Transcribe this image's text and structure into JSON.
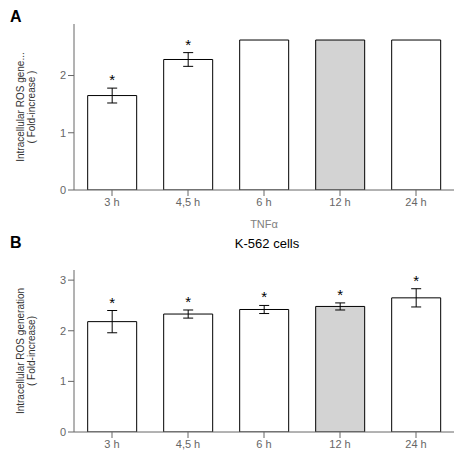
{
  "chart_data": [
    {
      "type": "bar",
      "panel_label": "A",
      "xlabel": "TNFα",
      "ylabel": "Intracellular ROS gene...\n( Fold-increase )",
      "categories": [
        "3 h",
        "4,5 h",
        "6 h",
        "12 h",
        "24 h"
      ],
      "values": [
        1.65,
        2.28,
        2.62,
        2.62,
        2.62
      ],
      "errors": [
        0.13,
        0.12,
        0.0,
        0.0,
        0.0
      ],
      "colors": [
        "white",
        "white",
        "white",
        "lightgray",
        "white"
      ],
      "annotations": [
        {
          "x": "3 h",
          "text": "*"
        },
        {
          "x": "4,5 h",
          "text": "*"
        }
      ],
      "ylim": [
        0,
        2.9
      ],
      "yticks": [
        0,
        1,
        2
      ]
    },
    {
      "type": "bar",
      "panel_label": "B",
      "title": "K-562 cells",
      "ylabel": "Intracellular ROS generation\n( Fold-increase)",
      "categories": [
        "3 h",
        "4,5 h",
        "6 h",
        "12 h",
        "24 h"
      ],
      "values": [
        2.18,
        2.33,
        2.42,
        2.48,
        2.65
      ],
      "errors": [
        0.22,
        0.08,
        0.08,
        0.07,
        0.18
      ],
      "colors": [
        "white",
        "white",
        "white",
        "lightgray",
        "white"
      ],
      "annotations": [
        {
          "x": "3 h",
          "text": "*"
        },
        {
          "x": "4,5 h",
          "text": "*"
        },
        {
          "x": "6 h",
          "text": "*"
        },
        {
          "x": "12 h",
          "text": "*"
        },
        {
          "x": "24 h",
          "text": "*"
        }
      ],
      "ylim": [
        0,
        3.2
      ],
      "yticks": [
        0,
        1,
        2,
        3
      ]
    }
  ]
}
